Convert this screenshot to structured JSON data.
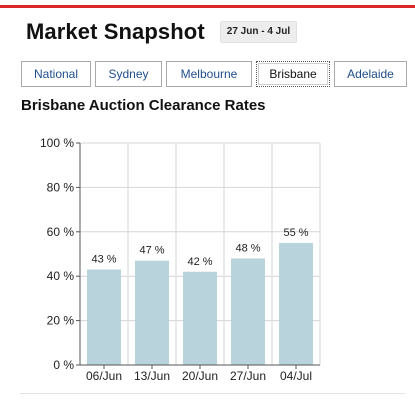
{
  "header": {
    "title": "Market Snapshot",
    "date_range": "27 Jun - 4 Jul"
  },
  "tabs": [
    {
      "label": "National",
      "active": false
    },
    {
      "label": "Sydney",
      "active": false
    },
    {
      "label": "Melbourne",
      "active": false
    },
    {
      "label": "Brisbane",
      "active": true
    },
    {
      "label": "Adelaide",
      "active": false
    }
  ],
  "section_title": "Brisbane Auction Clearance Rates",
  "colors": {
    "accent_rule": "#d9282a",
    "tab_text": "#1f4e8c",
    "bar_fill": "#b9d3dc",
    "grid": "#d6d6d6"
  },
  "chart_data": {
    "type": "bar",
    "categories": [
      "06/Jun",
      "13/Jun",
      "20/Jun",
      "27/Jun",
      "04/Jul"
    ],
    "values": [
      43,
      47,
      42,
      48,
      55
    ],
    "data_labels": [
      "43 %",
      "47 %",
      "42 %",
      "48 %",
      "55 %"
    ],
    "ylim": [
      0,
      100
    ],
    "yticks": [
      0,
      20,
      40,
      60,
      80,
      100
    ],
    "ytick_labels": [
      "0 %",
      "20 %",
      "40 %",
      "60 %",
      "80 %",
      "100 %"
    ],
    "grid": true,
    "title": "",
    "xlabel": "",
    "ylabel": ""
  }
}
